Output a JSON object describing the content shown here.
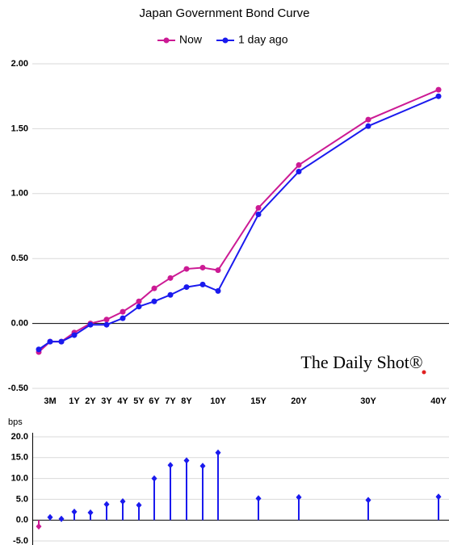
{
  "chart_data": [
    {
      "type": "line",
      "title": "Japan Government Bond Curve",
      "categories": [
        null,
        "3M",
        null,
        "1Y",
        "2Y",
        "3Y",
        "4Y",
        "5Y",
        "6Y",
        "7Y",
        "8Y",
        null,
        "10Y",
        "15Y",
        "20Y",
        "30Y",
        "40Y"
      ],
      "series": [
        {
          "name": "Now",
          "color": "#cc1a94",
          "values": [
            -0.22,
            -0.14,
            -0.14,
            -0.07,
            0.0,
            0.03,
            0.09,
            0.17,
            0.27,
            0.35,
            0.42,
            0.43,
            0.41,
            0.89,
            1.22,
            1.57,
            1.8
          ]
        },
        {
          "name": "1 day ago",
          "color": "#1a1aee",
          "values": [
            -0.2,
            -0.14,
            -0.14,
            -0.09,
            -0.01,
            -0.01,
            0.04,
            0.13,
            0.17,
            0.22,
            0.28,
            0.3,
            0.25,
            0.84,
            1.17,
            1.52,
            1.75
          ]
        }
      ],
      "ylim": [
        -0.5,
        2.0
      ],
      "yticks": [
        {
          "value": -0.5,
          "label": "-0.50"
        },
        {
          "value": 0,
          "label": "0.00"
        },
        {
          "value": 0.5,
          "label": "0.50"
        },
        {
          "value": 1,
          "label": "1.00"
        },
        {
          "value": 1.5,
          "label": "1.50"
        },
        {
          "value": 2,
          "label": "2.00"
        }
      ],
      "grid": true,
      "legend": "top",
      "annotation": "The Daily Shot®"
    },
    {
      "type": "stem",
      "ylabel": "bps",
      "color": "#1a1aee",
      "negative_color": "#cc1a94",
      "values": [
        -1.5,
        0.7,
        0.3,
        2.0,
        1.8,
        3.8,
        4.5,
        3.6,
        10.0,
        13.2,
        14.3,
        13.0,
        16.2,
        5.2,
        5.5,
        4.8,
        5.6
      ],
      "ylim": [
        -5,
        20
      ],
      "yticks": [
        {
          "value": -5,
          "label": "-5.0"
        },
        {
          "value": 0,
          "label": "0.0"
        },
        {
          "value": 5,
          "label": "5.0"
        },
        {
          "value": 10,
          "label": "10.0"
        },
        {
          "value": 15,
          "label": "15.0"
        },
        {
          "value": 20,
          "label": "20.0"
        }
      ],
      "grid": true
    }
  ]
}
